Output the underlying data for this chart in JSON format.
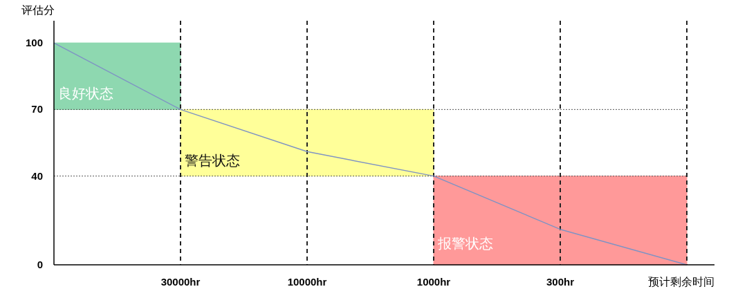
{
  "chart_data": {
    "type": "line",
    "ylabel": "评估分",
    "xlabel": "预计剩余时间",
    "categories": [
      null,
      "30000hr",
      "10000hr",
      "1000hr",
      "300hr",
      null
    ],
    "series": [
      {
        "type": "area",
        "color": "#8ed8b0",
        "values": [
          null,
          null,
          null,
          null,
          null,
          null
        ],
        "upper": [
          100,
          100,
          null,
          null,
          null,
          null
        ],
        "lower": [
          70,
          70,
          null,
          null,
          null,
          null
        ]
      },
      {
        "type": "area",
        "color": "#ffff99",
        "values": [
          null,
          null,
          null,
          null,
          null,
          null
        ],
        "upper": [
          null,
          70,
          70,
          70,
          null,
          null
        ],
        "lower": [
          null,
          40,
          40,
          40,
          null,
          null
        ]
      },
      {
        "type": "area",
        "color": "#ff9999",
        "values": [
          null,
          null,
          null,
          null,
          null,
          null
        ],
        "upper": [
          null,
          null,
          null,
          40,
          40,
          40
        ],
        "lower": [
          null,
          null,
          null,
          0,
          0,
          0
        ]
      },
      {
        "color": "#7f93c4",
        "values": [
          100,
          70,
          51,
          40,
          16,
          0
        ]
      }
    ],
    "ylim": [
      0,
      110
    ],
    "yticks": [
      0,
      40,
      70,
      100
    ],
    "grid": "x",
    "ref_lines": [
      {
        "axis": "y",
        "value": 70,
        "line_style": "dotted",
        "color": "#555555"
      },
      {
        "axis": "y",
        "value": 40,
        "line_style": "dotted",
        "color": "#555555"
      }
    ],
    "annotations": [
      "良好状态",
      "警告状态",
      "报警状态"
    ]
  }
}
